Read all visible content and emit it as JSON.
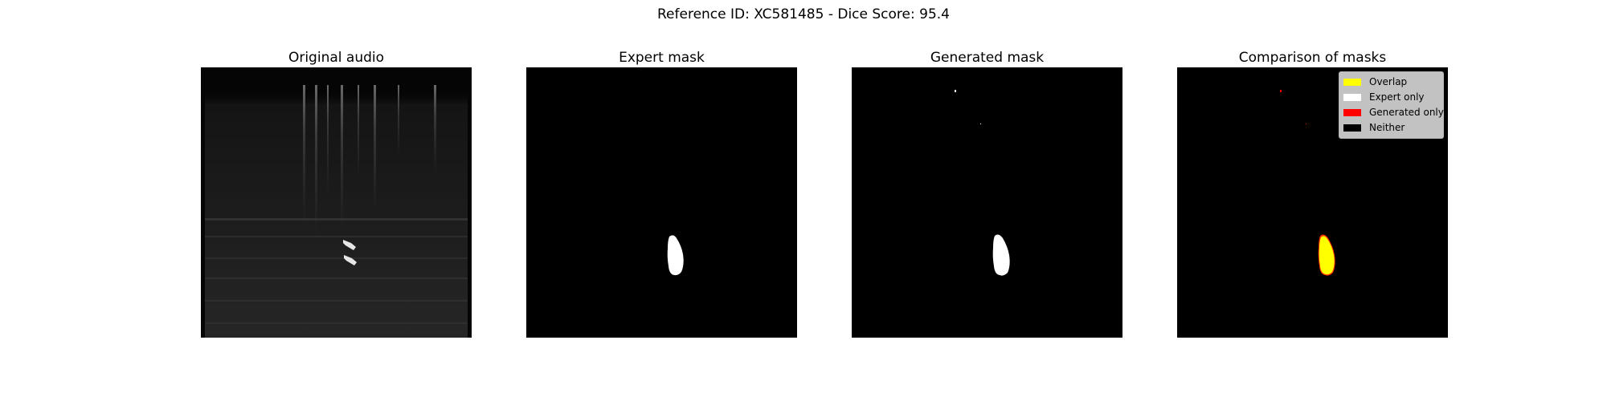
{
  "figure": {
    "title": "Reference ID: XC581485 - Dice Score: 95.4"
  },
  "panels": [
    {
      "title": "Original audio"
    },
    {
      "title": "Expert mask"
    },
    {
      "title": "Generated mask"
    },
    {
      "title": "Comparison of masks"
    }
  ],
  "legend": {
    "items": [
      {
        "label": "Overlap",
        "color": "#ffff00"
      },
      {
        "label": "Expert only",
        "color": "#ffffff"
      },
      {
        "label": "Generated only",
        "color": "#ff0000"
      },
      {
        "label": "Neither",
        "color": "#000000"
      }
    ]
  }
}
